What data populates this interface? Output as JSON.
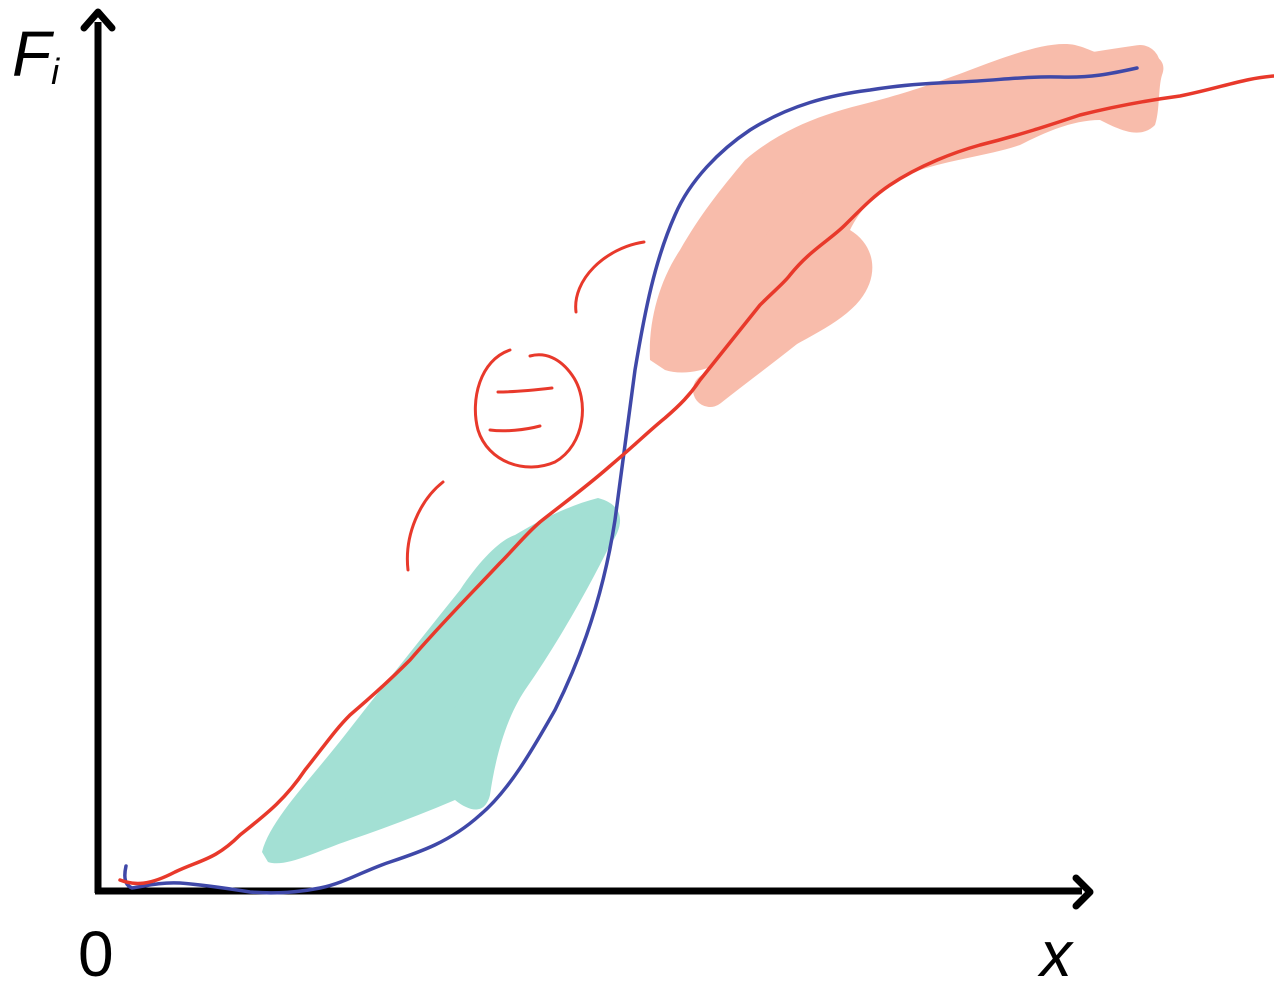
{
  "axes": {
    "y_label_main": "F",
    "y_label_sub": "i",
    "x_label": "x",
    "origin_label": "0"
  },
  "colors": {
    "axis": "#000000",
    "blue_curve": "#3f48a8",
    "red_curve": "#e8392b",
    "red_annotation": "#e8392b",
    "teal_region": "#a3e0d4",
    "salmon_region": "#f8bcab"
  },
  "annotations": {
    "circled_symbol": "="
  }
}
